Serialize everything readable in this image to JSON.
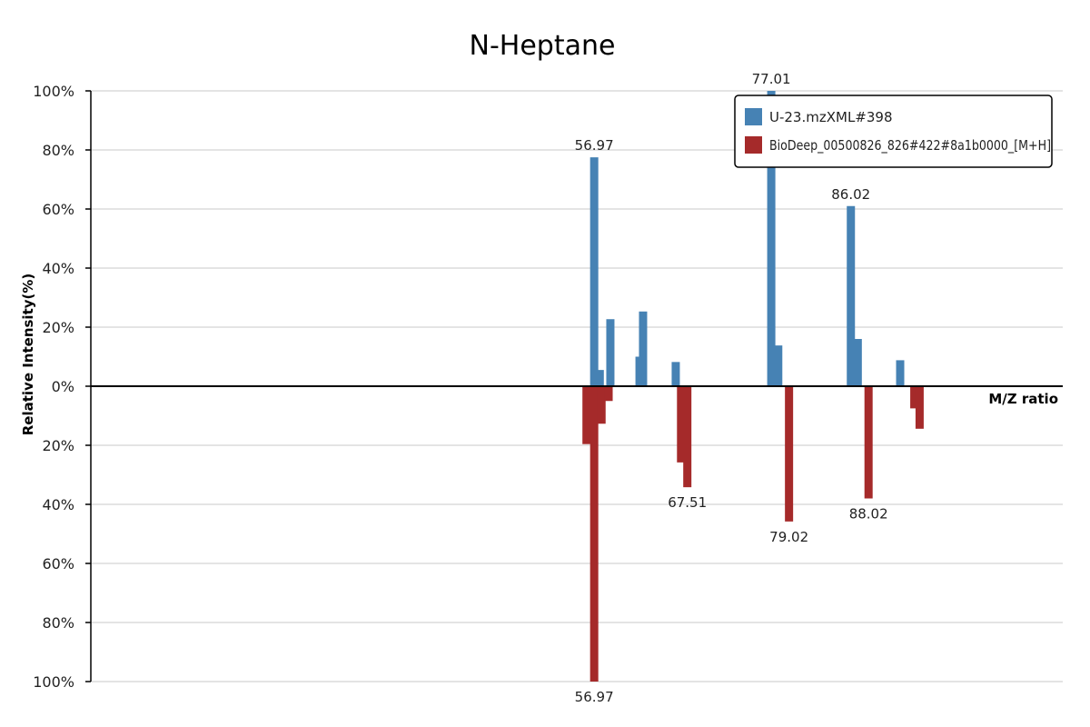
{
  "chart_data": {
    "type": "bar",
    "title": "N-Heptane",
    "xlabel": "M/Z ratio",
    "ylabel": "Relative Intensity(%)",
    "xlim": [
      0,
      110
    ],
    "ylim": [
      -100,
      100
    ],
    "yticks": [
      {
        "value": 100,
        "label": "100%"
      },
      {
        "value": 80,
        "label": "80%"
      },
      {
        "value": 60,
        "label": "60%"
      },
      {
        "value": 40,
        "label": "40%"
      },
      {
        "value": 20,
        "label": "20%"
      },
      {
        "value": 0,
        "label": "0%"
      },
      {
        "value": -20,
        "label": "20%"
      },
      {
        "value": -40,
        "label": "40%"
      },
      {
        "value": -60,
        "label": "60%"
      },
      {
        "value": -80,
        "label": "80%"
      },
      {
        "value": -100,
        "label": "100%"
      }
    ],
    "grid": true,
    "legend_position": "top-right",
    "series": [
      {
        "name": "U-23.mzXML#398",
        "color": "#4682b4",
        "points": [
          {
            "x": 56.97,
            "y": 77.5,
            "label": "56.97"
          },
          {
            "x": 57.6,
            "y": 5.5
          },
          {
            "x": 58.8,
            "y": 22.7
          },
          {
            "x": 62.1,
            "y": 10.0
          },
          {
            "x": 62.5,
            "y": 25.3
          },
          {
            "x": 66.2,
            "y": 8.2
          },
          {
            "x": 77.01,
            "y": 100,
            "label": "77.01"
          },
          {
            "x": 77.8,
            "y": 13.8
          },
          {
            "x": 86.02,
            "y": 61.0,
            "label": "86.02"
          },
          {
            "x": 86.8,
            "y": 16.0
          },
          {
            "x": 91.6,
            "y": 8.8
          }
        ]
      },
      {
        "name": "BioDeep_00500826_826#422#8a1b0000_[M+H]",
        "color": "#a52a2a",
        "points": [
          {
            "x": 56.1,
            "y": -19.6
          },
          {
            "x": 56.97,
            "y": -100,
            "label": "56.97"
          },
          {
            "x": 57.8,
            "y": -12.7
          },
          {
            "x": 58.6,
            "y": -5.0
          },
          {
            "x": 67.51,
            "y": -34.2,
            "label": "67.51"
          },
          {
            "x": 66.8,
            "y": -25.8
          },
          {
            "x": 79.02,
            "y": -45.8,
            "label": "79.02"
          },
          {
            "x": 88.02,
            "y": -38.0,
            "label": "88.02"
          },
          {
            "x": 93.2,
            "y": -7.5
          },
          {
            "x": 93.8,
            "y": -14.4
          }
        ]
      }
    ]
  }
}
